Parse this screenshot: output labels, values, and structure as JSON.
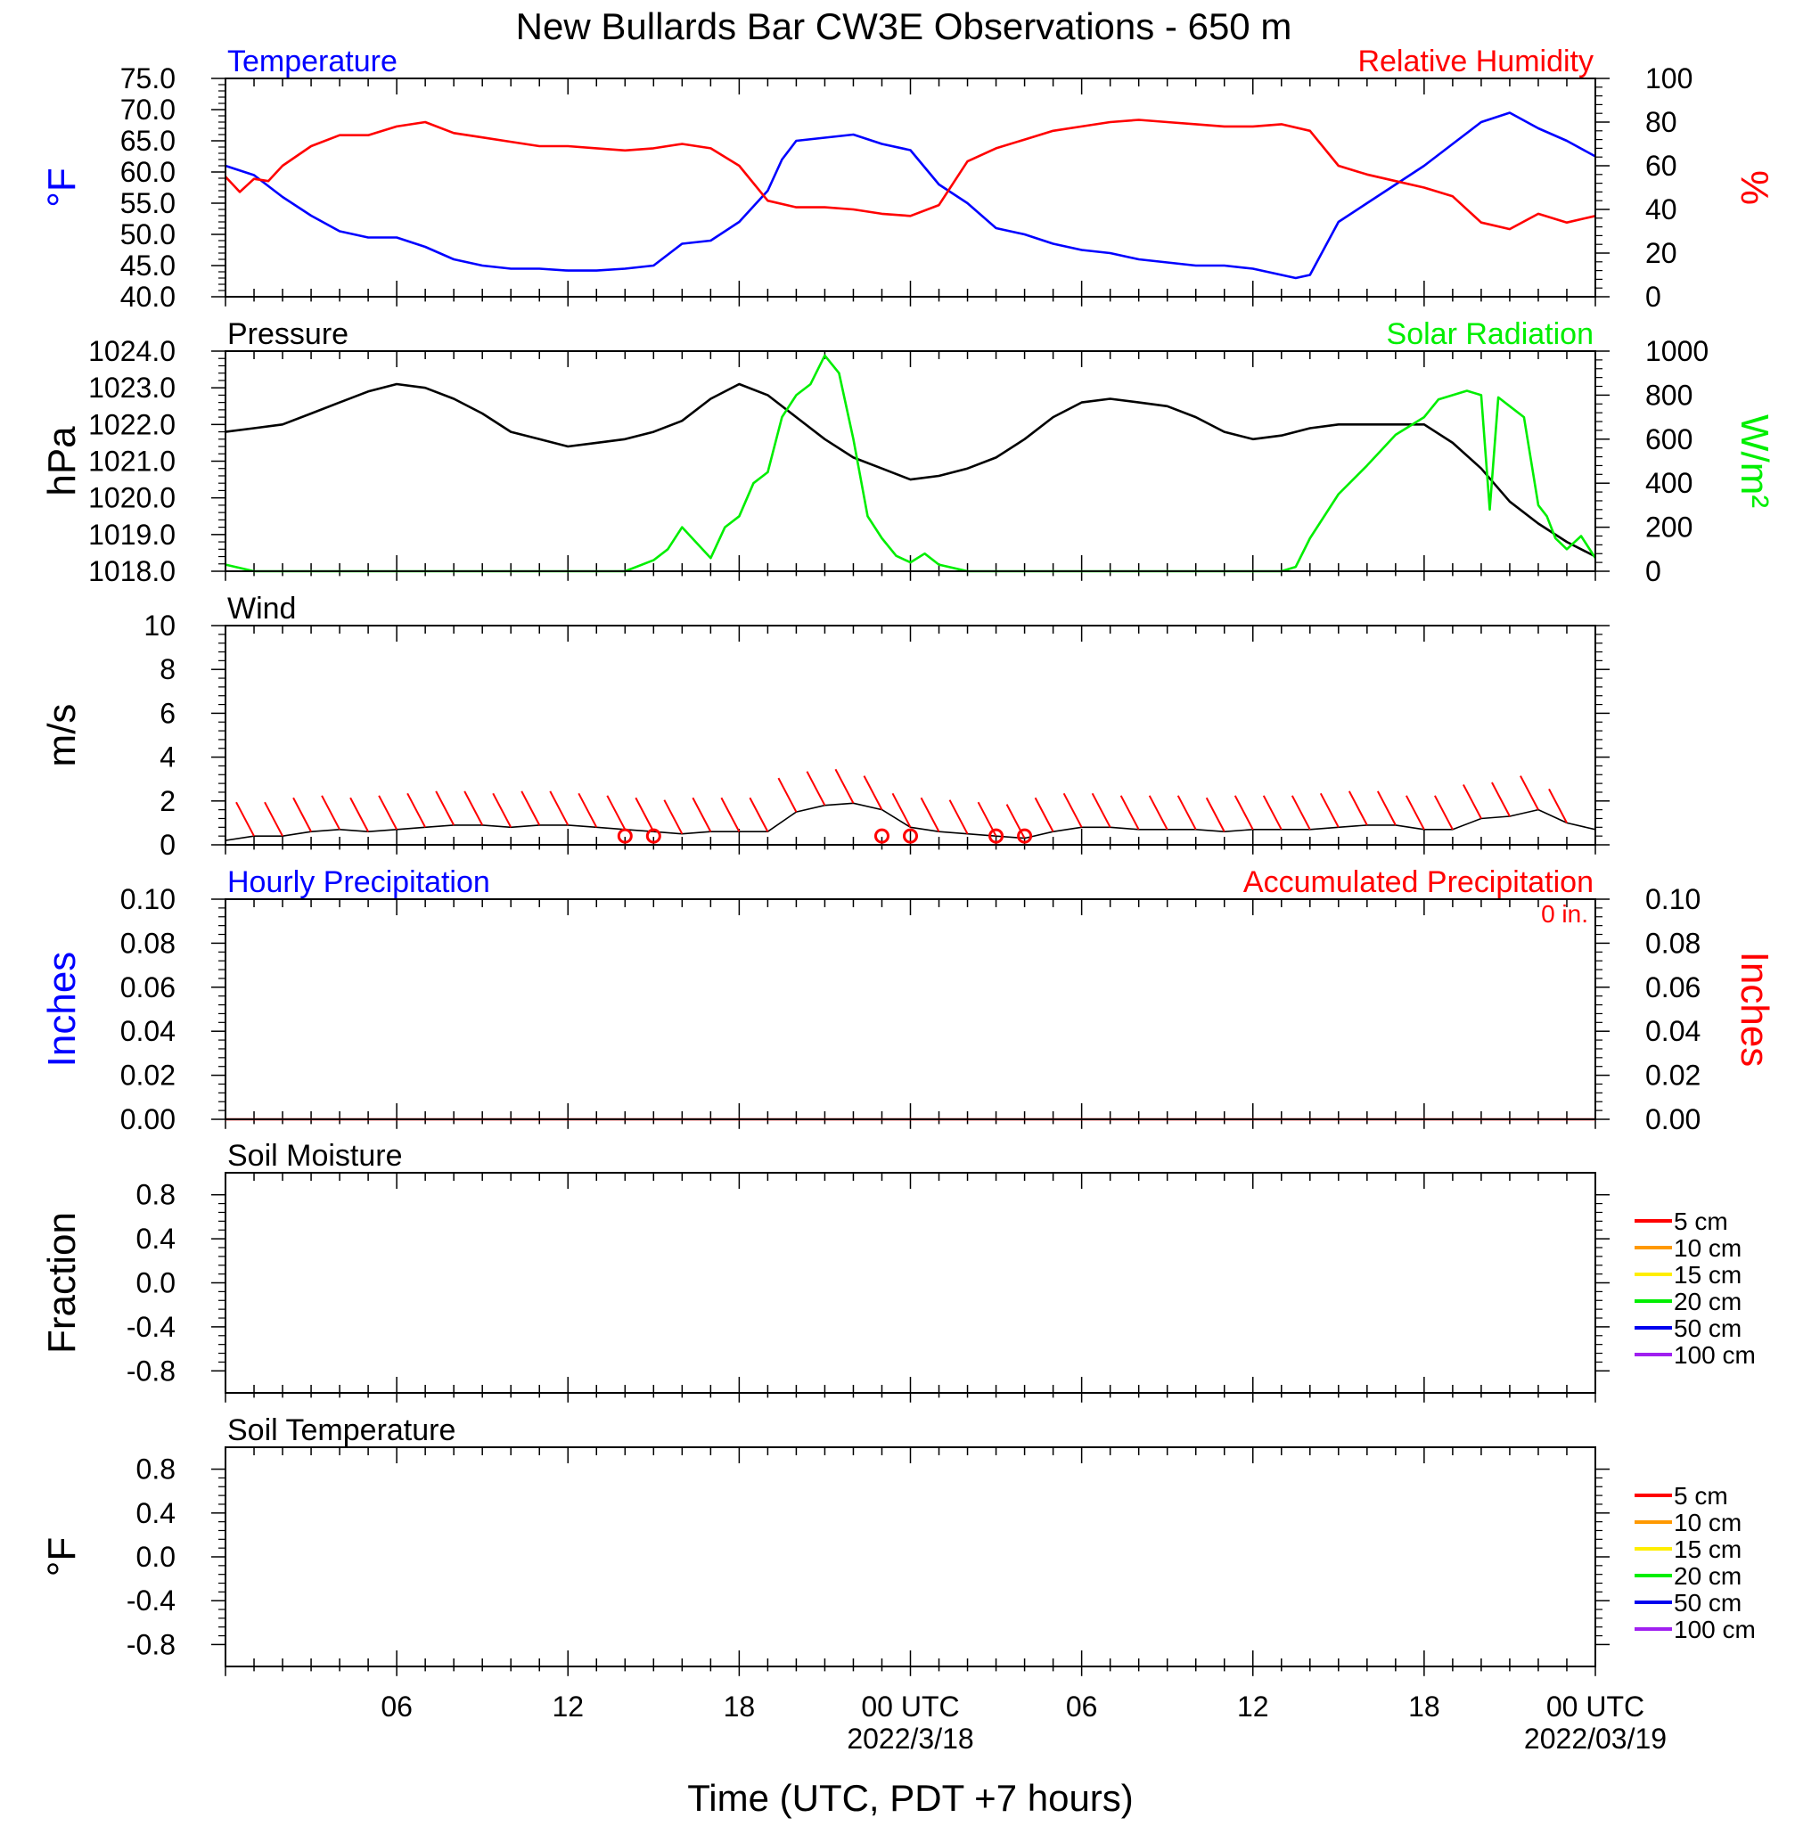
{
  "title": "New Bullards Bar CW3E Observations - 650 m",
  "x_axis": {
    "label": "Time (UTC, PDT +7 hours)",
    "range_hours": [
      0,
      48
    ],
    "tick_labels": [
      {
        "hour": 6,
        "text": "06"
      },
      {
        "hour": 12,
        "text": "12"
      },
      {
        "hour": 18,
        "text": "18"
      },
      {
        "hour": 24,
        "text": "00 UTC"
      },
      {
        "hour": 30,
        "text": "06"
      },
      {
        "hour": 36,
        "text": "12"
      },
      {
        "hour": 42,
        "text": "18"
      },
      {
        "hour": 48,
        "text": "00 UTC"
      }
    ],
    "date_labels": [
      {
        "hour": 24,
        "text": "2022/3/18"
      },
      {
        "hour": 48,
        "text": "2022/03/19"
      }
    ]
  },
  "colors": {
    "temperature": "#0000ff",
    "humidity": "#ff0000",
    "pressure": "#000000",
    "solar": "#00ee00",
    "wind": "#000000",
    "wind_barb": "#ff0000",
    "hourly_precip": "#0000ff",
    "accum_precip": "#ff0000"
  },
  "chart_data": [
    {
      "type": "line",
      "panel": "temperature-humidity",
      "left_title": "Temperature",
      "right_title": "Relative Humidity",
      "ylabel_left": "°F",
      "ylabel_right": "%",
      "ylim_left": [
        40,
        75
      ],
      "ylim_right": [
        0,
        100
      ],
      "yticks_left": [
        "40.0",
        "45.0",
        "50.0",
        "55.0",
        "60.0",
        "65.0",
        "70.0",
        "75.0"
      ],
      "yticks_right": [
        "0",
        "20",
        "40",
        "60",
        "80",
        "100"
      ],
      "series": [
        {
          "name": "Temperature",
          "axis": "left",
          "x": [
            0,
            1,
            2,
            3,
            4,
            5,
            6,
            7,
            8,
            9,
            10,
            11,
            12,
            13,
            14,
            15,
            16,
            17,
            18,
            19,
            19.5,
            20,
            21,
            22,
            23,
            24,
            25,
            26,
            27,
            28,
            29,
            30,
            31,
            32,
            33,
            34,
            35,
            36,
            37,
            37.5,
            38,
            39,
            40,
            41,
            42,
            43,
            44,
            45,
            46,
            47,
            48
          ],
          "y": [
            61,
            59.5,
            56,
            53,
            50.5,
            49.5,
            49.5,
            48,
            46,
            45,
            44.5,
            44.5,
            44.2,
            44.2,
            44.5,
            45,
            48.5,
            49,
            52,
            57,
            62,
            65,
            65.5,
            66,
            64.5,
            63.5,
            58,
            55,
            51,
            50,
            48.5,
            47.5,
            47,
            46,
            45.5,
            45,
            45,
            44.5,
            43.5,
            43,
            43.5,
            52,
            55,
            58,
            61,
            64.5,
            68,
            69.5,
            67,
            65,
            62.5
          ]
        },
        {
          "name": "Relative Humidity",
          "axis": "right",
          "x": [
            0,
            0.5,
            1,
            1.5,
            2,
            3,
            4,
            5,
            6,
            7,
            8,
            9,
            10,
            11,
            12,
            13,
            14,
            15,
            16,
            17,
            18,
            19,
            20,
            21,
            22,
            23,
            24,
            25,
            26,
            27,
            28,
            29,
            30,
            31,
            32,
            33,
            34,
            35,
            36,
            37,
            38,
            39,
            40,
            41,
            42,
            43,
            44,
            45,
            46,
            47,
            48
          ],
          "y": [
            55,
            48,
            54,
            53,
            60,
            69,
            74,
            74,
            78,
            80,
            75,
            73,
            71,
            69,
            69,
            68,
            67,
            68,
            70,
            68,
            60,
            44,
            41,
            41,
            40,
            38,
            37,
            42,
            62,
            68,
            72,
            76,
            78,
            80,
            81,
            80,
            79,
            78,
            78,
            79,
            76,
            60,
            56,
            53,
            50,
            46,
            34,
            31,
            38,
            34,
            37
          ]
        }
      ]
    },
    {
      "type": "line",
      "panel": "pressure-solar",
      "left_title": "Pressure",
      "right_title": "Solar Radiation",
      "ylabel_left": "hPa",
      "ylabel_right": "W/m²",
      "ylim_left": [
        1018,
        1024
      ],
      "ylim_right": [
        0,
        1000
      ],
      "yticks_left": [
        "1018.0",
        "1019.0",
        "1020.0",
        "1021.0",
        "1022.0",
        "1023.0",
        "1024.0"
      ],
      "yticks_right": [
        "0",
        "200",
        "400",
        "600",
        "800",
        "1000"
      ],
      "series": [
        {
          "name": "Pressure",
          "axis": "left",
          "x": [
            0,
            1,
            2,
            3,
            4,
            5,
            6,
            7,
            8,
            9,
            10,
            11,
            12,
            13,
            14,
            15,
            16,
            17,
            18,
            19,
            20,
            21,
            22,
            23,
            24,
            25,
            26,
            27,
            28,
            29,
            30,
            31,
            32,
            33,
            34,
            35,
            36,
            37,
            38,
            39,
            40,
            41,
            42,
            43,
            44,
            45,
            46,
            47,
            48
          ],
          "y": [
            1021.8,
            1021.9,
            1022,
            1022.3,
            1022.6,
            1022.9,
            1023.1,
            1023,
            1022.7,
            1022.3,
            1021.8,
            1021.6,
            1021.4,
            1021.5,
            1021.6,
            1021.8,
            1022.1,
            1022.7,
            1023.1,
            1022.8,
            1022.2,
            1021.6,
            1021.1,
            1020.8,
            1020.5,
            1020.6,
            1020.8,
            1021.1,
            1021.6,
            1022.2,
            1022.6,
            1022.7,
            1022.6,
            1022.5,
            1022.2,
            1021.8,
            1021.6,
            1021.7,
            1021.9,
            1022,
            1022,
            1022,
            1022,
            1021.5,
            1020.8,
            1019.9,
            1019.3,
            1018.8,
            1018.4
          ]
        },
        {
          "name": "Solar Radiation",
          "axis": "right",
          "x": [
            0,
            1,
            2,
            13,
            14,
            15,
            15.5,
            16,
            16.5,
            17,
            17.5,
            18,
            18.5,
            19,
            19.5,
            20,
            20.5,
            21,
            21.5,
            22,
            22.5,
            23,
            23.5,
            24,
            24.5,
            25,
            26,
            37,
            37.5,
            38,
            39,
            40,
            41,
            42,
            42.5,
            43,
            43.5,
            44,
            44.3,
            44.6,
            45,
            45.5,
            46,
            46.3,
            46.6,
            47,
            47.5,
            48
          ],
          "y": [
            30,
            0,
            0,
            0,
            0,
            50,
            100,
            200,
            130,
            60,
            200,
            250,
            400,
            450,
            700,
            800,
            850,
            980,
            900,
            600,
            250,
            150,
            70,
            40,
            80,
            30,
            0,
            0,
            20,
            150,
            350,
            480,
            620,
            700,
            780,
            800,
            820,
            800,
            280,
            790,
            750,
            700,
            300,
            250,
            150,
            100,
            160,
            60
          ]
        }
      ]
    },
    {
      "type": "line",
      "panel": "wind",
      "left_title": "Wind",
      "ylabel_left": "m/s",
      "ylim_left": [
        0,
        10
      ],
      "yticks_left": [
        "0",
        "2",
        "4",
        "6",
        "8",
        "10"
      ],
      "series": [
        {
          "name": "Wind",
          "axis": "left",
          "x": [
            0,
            1,
            2,
            3,
            4,
            5,
            6,
            7,
            8,
            9,
            10,
            11,
            12,
            13,
            14,
            15,
            16,
            17,
            18,
            19,
            20,
            21,
            22,
            23,
            24,
            25,
            26,
            27,
            28,
            29,
            30,
            31,
            32,
            33,
            34,
            35,
            36,
            37,
            38,
            39,
            40,
            41,
            42,
            43,
            44,
            45,
            46,
            47,
            48
          ],
          "y": [
            0.2,
            0.4,
            0.4,
            0.6,
            0.7,
            0.6,
            0.7,
            0.8,
            0.9,
            0.9,
            0.8,
            0.9,
            0.9,
            0.8,
            0.7,
            0.6,
            0.5,
            0.6,
            0.6,
            0.6,
            1.5,
            1.8,
            1.9,
            1.6,
            0.8,
            0.6,
            0.5,
            0.4,
            0.3,
            0.6,
            0.8,
            0.8,
            0.7,
            0.7,
            0.7,
            0.6,
            0.7,
            0.7,
            0.7,
            0.8,
            0.9,
            0.9,
            0.7,
            0.7,
            1.2,
            1.3,
            1.6,
            1.0,
            0.7
          ]
        }
      ],
      "calm_markers_hours": [
        14,
        15,
        23,
        24,
        27,
        28
      ]
    },
    {
      "type": "line",
      "panel": "precipitation",
      "left_title": "Hourly Precipitation",
      "right_title": "Accumulated Precipitation",
      "accumulated_label": "0 in.",
      "ylabel_left": "Inches",
      "ylabel_right": "Inches",
      "ylim_left": [
        0,
        0.1
      ],
      "ylim_right": [
        0,
        0.1
      ],
      "yticks_left": [
        "0.00",
        "0.02",
        "0.04",
        "0.06",
        "0.08",
        "0.10"
      ],
      "yticks_right": [
        "0.00",
        "0.02",
        "0.04",
        "0.06",
        "0.08",
        "0.10"
      ],
      "series": [
        {
          "name": "Accumulated Precipitation",
          "axis": "left",
          "x": [
            0,
            48
          ],
          "y": [
            0,
            0
          ]
        }
      ]
    },
    {
      "type": "line",
      "panel": "soil-moisture",
      "left_title": "Soil Moisture",
      "ylabel_left": "Fraction",
      "ylim_left": [
        -1,
        1
      ],
      "yticks_left": [
        "-0.8",
        "-0.4",
        "0.0",
        "0.4",
        "0.8"
      ],
      "legend": [
        {
          "name": "5 cm",
          "color": "#ff0000"
        },
        {
          "name": "10 cm",
          "color": "#ff9900"
        },
        {
          "name": "15 cm",
          "color": "#ffee00"
        },
        {
          "name": "20 cm",
          "color": "#00ee00"
        },
        {
          "name": "50 cm",
          "color": "#0000ee"
        },
        {
          "name": "100 cm",
          "color": "#a020f0"
        }
      ],
      "series": []
    },
    {
      "type": "line",
      "panel": "soil-temperature",
      "left_title": "Soil Temperature",
      "ylabel_left": "°F",
      "ylim_left": [
        -1,
        1
      ],
      "yticks_left": [
        "-0.8",
        "-0.4",
        "0.0",
        "0.4",
        "0.8"
      ],
      "legend": [
        {
          "name": "5 cm",
          "color": "#ff0000"
        },
        {
          "name": "10 cm",
          "color": "#ff9900"
        },
        {
          "name": "15 cm",
          "color": "#ffee00"
        },
        {
          "name": "20 cm",
          "color": "#00ee00"
        },
        {
          "name": "50 cm",
          "color": "#0000ee"
        },
        {
          "name": "100 cm",
          "color": "#a020f0"
        }
      ],
      "series": []
    }
  ]
}
